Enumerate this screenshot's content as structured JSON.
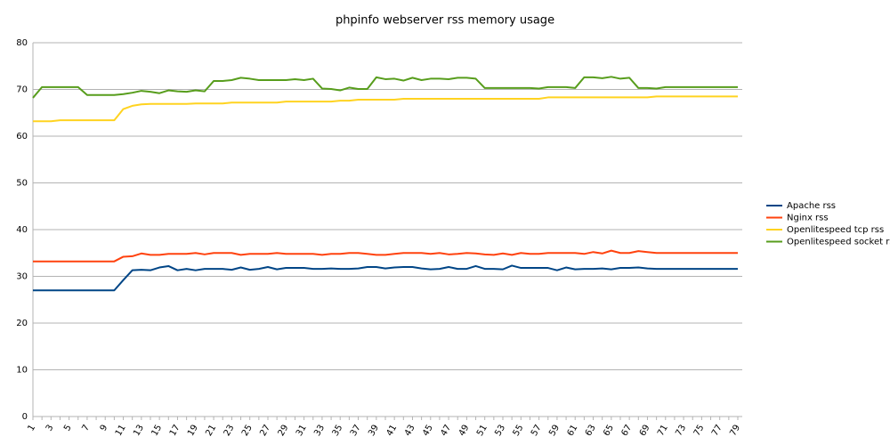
{
  "chart_data": {
    "type": "line",
    "title": "phpinfo webserver rss memory usage",
    "categories": [
      1,
      null,
      3,
      null,
      5,
      null,
      7,
      null,
      9,
      null,
      11,
      null,
      13,
      null,
      15,
      null,
      17,
      null,
      19,
      null,
      21,
      null,
      23,
      null,
      25,
      null,
      27,
      null,
      29,
      null,
      31,
      null,
      33,
      null,
      35,
      null,
      37,
      null,
      39,
      null,
      41,
      null,
      43,
      null,
      45,
      null,
      47,
      null,
      49,
      null,
      51,
      null,
      53,
      null,
      55,
      null,
      57,
      null,
      59,
      null,
      61,
      null,
      63,
      null,
      65,
      null,
      67,
      null,
      69,
      null,
      71,
      null,
      73,
      null,
      75,
      null,
      77,
      null,
      79
    ],
    "ylim": [
      0,
      80
    ],
    "yticks": [
      0,
      10,
      20,
      30,
      40,
      50,
      60,
      70,
      80
    ],
    "grid": true,
    "legend": "right",
    "series": [
      {
        "name": "Apache rss",
        "color": "#004586",
        "values": [
          27,
          27,
          27,
          27,
          27,
          27,
          27,
          27,
          27,
          27,
          29.2,
          31.3,
          31.4,
          31.3,
          31.9,
          32.2,
          31.3,
          31.6,
          31.3,
          31.6,
          31.6,
          31.6,
          31.4,
          31.9,
          31.4,
          31.6,
          32.0,
          31.5,
          31.8,
          31.8,
          31.8,
          31.6,
          31.6,
          31.7,
          31.6,
          31.6,
          31.7,
          32.0,
          32.0,
          31.7,
          31.9,
          32.0,
          32.0,
          31.7,
          31.5,
          31.6,
          32.0,
          31.6,
          31.6,
          32.2,
          31.6,
          31.6,
          31.5,
          32.3,
          31.8,
          31.8,
          31.8,
          31.8,
          31.3,
          31.9,
          31.5,
          31.6,
          31.6,
          31.7,
          31.5,
          31.8,
          31.8,
          31.9,
          31.7,
          31.6,
          31.6,
          31.6,
          31.6,
          31.6,
          31.6,
          31.6,
          31.6,
          31.6,
          31.6
        ]
      },
      {
        "name": "Nginx rss",
        "color": "#ff420e",
        "values": [
          33.2,
          33.2,
          33.2,
          33.2,
          33.2,
          33.2,
          33.2,
          33.2,
          33.2,
          33.2,
          34.2,
          34.3,
          34.9,
          34.6,
          34.6,
          34.8,
          34.8,
          34.8,
          35.0,
          34.7,
          35.0,
          35.0,
          35.0,
          34.6,
          34.8,
          34.8,
          34.8,
          35.0,
          34.8,
          34.8,
          34.8,
          34.8,
          34.6,
          34.8,
          34.8,
          35.0,
          35.0,
          34.8,
          34.6,
          34.6,
          34.8,
          35.0,
          35.0,
          35.0,
          34.8,
          35.0,
          34.7,
          34.8,
          35.0,
          34.9,
          34.7,
          34.6,
          34.9,
          34.6,
          35.0,
          34.8,
          34.8,
          35.0,
          35.0,
          35.0,
          35.0,
          34.8,
          35.2,
          34.9,
          35.5,
          35.0,
          35.0,
          35.4,
          35.2,
          35.0,
          35.0,
          35.0,
          35.0,
          35.0,
          35.0,
          35.0,
          35.0,
          35.0,
          35.0
        ]
      },
      {
        "name": "Openlitespeed tcp rss",
        "color": "#ffd320",
        "values": [
          63.2,
          63.2,
          63.2,
          63.4,
          63.4,
          63.4,
          63.4,
          63.4,
          63.4,
          63.4,
          65.8,
          66.5,
          66.8,
          66.9,
          66.9,
          66.9,
          66.9,
          66.9,
          67.0,
          67.0,
          67.0,
          67.0,
          67.2,
          67.2,
          67.2,
          67.2,
          67.2,
          67.2,
          67.4,
          67.4,
          67.4,
          67.4,
          67.4,
          67.4,
          67.6,
          67.6,
          67.8,
          67.8,
          67.8,
          67.8,
          67.8,
          68,
          68,
          68,
          68,
          68,
          68,
          68,
          68,
          68,
          68,
          68,
          68,
          68,
          68,
          68,
          68,
          68.3,
          68.3,
          68.3,
          68.3,
          68.3,
          68.3,
          68.3,
          68.3,
          68.3,
          68.3,
          68.3,
          68.3,
          68.5,
          68.5,
          68.5,
          68.5,
          68.5,
          68.5,
          68.5,
          68.5,
          68.5,
          68.5
        ]
      },
      {
        "name": "Openlitespeed socket rss",
        "color": "#579d1c",
        "values": [
          68.2,
          70.5,
          70.5,
          70.5,
          70.5,
          70.5,
          68.8,
          68.8,
          68.8,
          68.8,
          69.0,
          69.3,
          69.7,
          69.5,
          69.2,
          69.8,
          69.6,
          69.5,
          69.8,
          69.6,
          71.8,
          71.8,
          72.0,
          72.5,
          72.3,
          72.0,
          72.0,
          72.0,
          72.0,
          72.2,
          72.0,
          72.3,
          70.2,
          70.1,
          69.8,
          70.4,
          70.1,
          70.1,
          72.6,
          72.2,
          72.3,
          71.9,
          72.5,
          72.0,
          72.3,
          72.3,
          72.2,
          72.5,
          72.5,
          72.3,
          70.3,
          70.3,
          70.3,
          70.3,
          70.3,
          70.3,
          70.2,
          70.5,
          70.5,
          70.5,
          70.3,
          72.6,
          72.6,
          72.4,
          72.7,
          72.3,
          72.5,
          70.3,
          70.3,
          70.2,
          70.5,
          70.5,
          70.5,
          70.5,
          70.5,
          70.5,
          70.5,
          70.5,
          70.5
        ]
      }
    ]
  }
}
